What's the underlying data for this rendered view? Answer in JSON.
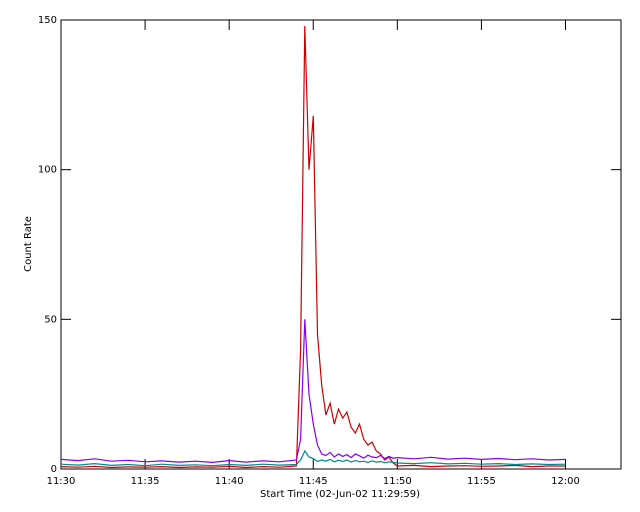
{
  "chart_data": {
    "type": "line",
    "x_label": "Start Time (02-Jun-02 11:29:59)",
    "y_label": "Count Rate",
    "x": [
      0,
      1,
      2,
      3,
      4,
      5,
      6,
      7,
      8,
      9,
      10,
      11,
      12,
      13,
      14,
      14.25,
      14.5,
      14.75,
      15,
      15.25,
      15.5,
      15.75,
      16,
      16.25,
      16.5,
      16.75,
      17,
      17.25,
      17.5,
      17.75,
      18,
      18.25,
      18.5,
      18.75,
      19,
      19.25,
      19.5,
      19.75,
      20,
      21,
      22,
      23,
      24,
      25,
      26,
      27,
      28,
      29,
      30
    ],
    "series": [
      {
        "name": "red",
        "color": "#cc0000",
        "values": [
          0.8,
          0.6,
          0.9,
          0.5,
          0.7,
          0.6,
          0.8,
          0.5,
          0.7,
          0.6,
          0.9,
          0.5,
          0.8,
          0.6,
          1,
          40,
          148,
          100,
          118,
          45,
          28,
          18,
          22,
          15,
          20,
          17,
          19,
          14,
          12,
          15,
          10,
          8,
          9,
          6,
          5,
          3,
          4,
          2,
          1,
          1.2,
          0.8,
          1,
          1.1,
          0.9,
          1,
          1.2,
          0.8,
          1,
          1
        ]
      },
      {
        "name": "purple",
        "color": "#8a00e6",
        "values": [
          3.2,
          2.8,
          3.4,
          2.6,
          2.9,
          2.4,
          2.7,
          2.3,
          2.6,
          2.2,
          2.8,
          2.3,
          2.7,
          2.4,
          3,
          10,
          50,
          25,
          15,
          8,
          5,
          4.5,
          5.5,
          4,
          5,
          4.2,
          4.8,
          3.8,
          5,
          4.4,
          3.6,
          4.6,
          4,
          3.8,
          4.5,
          3.5,
          4.2,
          3.6,
          3.8,
          3.4,
          3.9,
          3.3,
          3.6,
          3.2,
          3.5,
          3.1,
          3.4,
          3,
          3.2
        ]
      },
      {
        "name": "teal",
        "color": "#008b8b",
        "values": [
          1.6,
          1.3,
          1.8,
          1.2,
          1.5,
          1.1,
          1.6,
          1.2,
          1.4,
          1.1,
          1.5,
          1.2,
          1.6,
          1.3,
          1.5,
          3,
          6,
          4,
          3.5,
          2.5,
          3,
          2.6,
          3.2,
          2.4,
          2.9,
          2.5,
          3,
          2.3,
          2.8,
          2.4,
          2.6,
          2.2,
          2.7,
          2.3,
          2.5,
          2.1,
          2.4,
          2.2,
          2,
          1.8,
          2.1,
          1.7,
          1.9,
          1.6,
          1.8,
          1.5,
          1.7,
          1.5,
          1.6
        ]
      }
    ],
    "xlim": [
      0,
      33.3
    ],
    "xticks": [
      {
        "value": 0,
        "label": "11:30"
      },
      {
        "value": 5,
        "label": "11:35"
      },
      {
        "value": 10,
        "label": "11:40"
      },
      {
        "value": 15,
        "label": "11:45"
      },
      {
        "value": 20,
        "label": "11:50"
      },
      {
        "value": 25,
        "label": "11:55"
      },
      {
        "value": 30,
        "label": "12:00"
      }
    ],
    "ylim": [
      0,
      150
    ],
    "yticks": [
      0,
      50,
      100,
      150
    ]
  }
}
